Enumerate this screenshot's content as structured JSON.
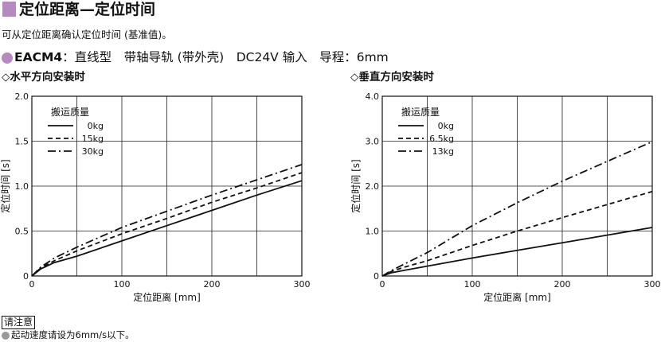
{
  "header": {
    "title": "定位距离—定位时间"
  },
  "description": "可从定位距离确认定位时间 (基准值)。",
  "product": {
    "model": "EACM4",
    "spec": "：直线型　带轴导轨 (带外壳)　DC24V 输入　导程：6mm"
  },
  "subtitle_symbol": "◇",
  "notice": {
    "label": "请注意",
    "text": "起动速度请设为6mm/s以下。"
  },
  "colors": {
    "accent": "#b58ac1",
    "line": "#111111",
    "note_dot": "#999999"
  },
  "chart_data": [
    {
      "type": "line",
      "title": "水平方向安装时",
      "xlabel": "定位距离 [mm]",
      "ylabel": "定位时间 [s]",
      "xlim": [
        0,
        300
      ],
      "ylim": [
        0,
        2.0
      ],
      "xticks": [
        0,
        100,
        200,
        300
      ],
      "xtick_labels": [
        "0",
        "100",
        "200",
        "300"
      ],
      "yticks": [
        0,
        0.5,
        1.0,
        1.5,
        2.0
      ],
      "ytick_labels": [
        "0",
        "0.5",
        "1.0",
        "1.5",
        "2.0"
      ],
      "grid": true,
      "legend": {
        "title": "搬运质量",
        "position": "top-left"
      },
      "x": [
        0,
        10,
        25,
        50,
        100,
        150,
        200,
        250,
        300
      ],
      "series": [
        {
          "name": "0kg",
          "style": "solid",
          "values": [
            0,
            0.08,
            0.15,
            0.22,
            0.39,
            0.56,
            0.73,
            0.9,
            1.06
          ]
        },
        {
          "name": "15kg",
          "style": "dashed",
          "values": [
            0,
            0.09,
            0.17,
            0.28,
            0.47,
            0.64,
            0.82,
            0.98,
            1.15
          ]
        },
        {
          "name": "30kg",
          "style": "dashdot",
          "values": [
            0,
            0.1,
            0.2,
            0.32,
            0.54,
            0.72,
            0.9,
            1.07,
            1.24
          ]
        }
      ]
    },
    {
      "type": "line",
      "title": "垂直方向安装时",
      "xlabel": "定位距离 [mm]",
      "ylabel": "定位时间 [s]",
      "xlim": [
        0,
        300
      ],
      "ylim": [
        0,
        4.0
      ],
      "xticks": [
        0,
        100,
        200,
        300
      ],
      "xtick_labels": [
        "0",
        "100",
        "200",
        "300"
      ],
      "yticks": [
        0,
        1.0,
        2.0,
        3.0,
        4.0
      ],
      "ytick_labels": [
        "0",
        "1.0",
        "2.0",
        "3.0",
        "4.0"
      ],
      "grid": true,
      "legend": {
        "title": "搬运质量",
        "position": "top-left"
      },
      "x": [
        0,
        10,
        25,
        50,
        100,
        150,
        200,
        250,
        300
      ],
      "series": [
        {
          "name": "0kg",
          "style": "solid",
          "values": [
            0,
            0.07,
            0.13,
            0.22,
            0.4,
            0.57,
            0.74,
            0.91,
            1.08
          ]
        },
        {
          "name": "6.5kg",
          "style": "dashed",
          "values": [
            0,
            0.1,
            0.2,
            0.34,
            0.68,
            1.0,
            1.3,
            1.59,
            1.88
          ]
        },
        {
          "name": "13kg",
          "style": "dashdot",
          "values": [
            0,
            0.12,
            0.27,
            0.52,
            1.12,
            1.63,
            2.11,
            2.55,
            2.99
          ]
        }
      ]
    }
  ]
}
